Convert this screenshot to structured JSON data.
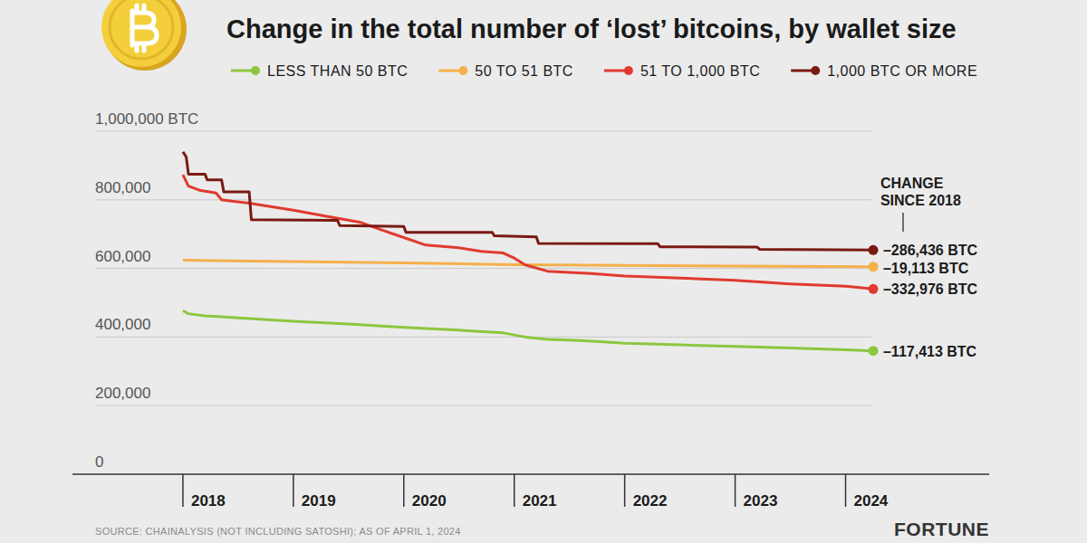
{
  "chart_data": {
    "type": "line",
    "title": "Change in the total number of ‘lost’ bitcoins, by wallet size",
    "annotation": "CHANGE SINCE 2018",
    "source": "SOURCE: CHAINALYSIS (NOT INCLUDING SATOSHI); AS OF APRIL 1, 2024",
    "credit": "FORTUNE",
    "xlim": [
      2017,
      2025.3
    ],
    "xticks": [
      2018,
      2019,
      2020,
      2021,
      2022,
      2023,
      2024
    ],
    "ylim": [
      0,
      1000000
    ],
    "yticks": [
      0,
      {
        "value": 200000,
        "label": "200,000"
      },
      {
        "value": 400000,
        "label": "400,000"
      },
      {
        "value": 600000,
        "label": "600,000"
      },
      {
        "value": 800000,
        "label": "800,000"
      },
      {
        "value": 1000000,
        "label": "1,000,000 BTC"
      }
    ],
    "grid": true,
    "legend": "top",
    "marker": "end",
    "series": [
      {
        "name": "LESS THAN 50 BTC",
        "color": "#8dc63f",
        "end_label": "–117,413 BTC",
        "x": [
          2018.0,
          2018.05,
          2018.2,
          2018.5,
          2019.0,
          2019.5,
          2020.0,
          2020.5,
          2020.9,
          2021.1,
          2021.3,
          2021.6,
          2022.0,
          2022.5,
          2023.0,
          2023.5,
          2024.0,
          2024.25
        ],
        "values": [
          477000,
          468000,
          462000,
          456000,
          446000,
          438000,
          428000,
          420000,
          412000,
          400000,
          393000,
          390000,
          382000,
          377000,
          373000,
          368000,
          363000,
          359587
        ]
      },
      {
        "name": "50 TO 51 BTC",
        "color": "#f5b04b",
        "end_label": "–19,113 BTC",
        "x": [
          2018.0,
          2019.0,
          2020.0,
          2021.0,
          2022.0,
          2023.0,
          2024.25
        ],
        "values": [
          624000,
          620000,
          616000,
          611000,
          609000,
          607000,
          604887
        ]
      },
      {
        "name": "51 TO 1,000 BTC",
        "color": "#e03a2f",
        "end_label": "–332,976 BTC",
        "x": [
          2018.0,
          2018.05,
          2018.15,
          2018.3,
          2018.35,
          2018.6,
          2019.0,
          2019.3,
          2019.6,
          2019.8,
          2020.0,
          2020.2,
          2020.5,
          2020.7,
          2020.9,
          2021.0,
          2021.1,
          2021.3,
          2021.7,
          2022.0,
          2022.5,
          2023.0,
          2023.5,
          2024.0,
          2024.25
        ],
        "values": [
          873000,
          840000,
          828000,
          820000,
          800000,
          790000,
          770000,
          752000,
          735000,
          712000,
          690000,
          668000,
          660000,
          650000,
          645000,
          630000,
          610000,
          592000,
          585000,
          578000,
          572000,
          565000,
          555000,
          548000,
          540024
        ]
      },
      {
        "name": "1,000 BTC OR MORE",
        "color": "#7a1a12",
        "end_label": "–286,436 BTC",
        "x": [
          2018.0,
          2018.03,
          2018.05,
          2018.2,
          2018.22,
          2018.35,
          2018.37,
          2018.6,
          2018.62,
          2019.4,
          2019.42,
          2020.0,
          2020.02,
          2020.8,
          2020.82,
          2021.2,
          2021.22,
          2022.3,
          2022.32,
          2023.2,
          2023.22,
          2024.25
        ],
        "values": [
          940000,
          925000,
          875000,
          875000,
          858000,
          858000,
          823000,
          823000,
          742000,
          740000,
          725000,
          722000,
          705000,
          705000,
          695000,
          692000,
          673000,
          672000,
          663000,
          662000,
          656000,
          653564
        ]
      }
    ]
  }
}
